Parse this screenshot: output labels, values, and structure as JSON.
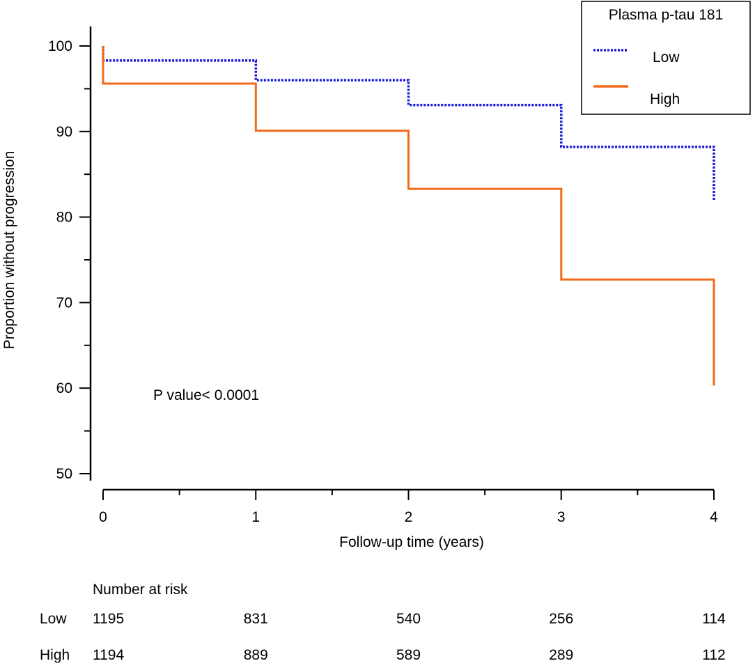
{
  "chart_data": {
    "type": "line",
    "subtype": "kaplan-meier step",
    "xlabel": "Follow-up time (years)",
    "ylabel": "Proportion without progression",
    "xlim": [
      0,
      4
    ],
    "ylim": [
      50,
      100
    ],
    "x_ticks": [
      0,
      1,
      2,
      3,
      4
    ],
    "y_ticks": [
      50,
      60,
      70,
      80,
      90,
      100
    ],
    "annotation": "P value< 0.0001",
    "legend": {
      "title": "Plasma p-tau 181",
      "position": "top-right",
      "entries": [
        "Low",
        "High"
      ]
    },
    "series": [
      {
        "name": "Low",
        "color": "#1a1adb",
        "dash": "dotted",
        "steps": [
          [
            0,
            100
          ],
          [
            0,
            98.3
          ],
          [
            1,
            98.3
          ],
          [
            1,
            96.0
          ],
          [
            2,
            96.0
          ],
          [
            2,
            93.1
          ],
          [
            3,
            93.1
          ],
          [
            3,
            88.2
          ],
          [
            4,
            88.2
          ],
          [
            4,
            82.0
          ]
        ]
      },
      {
        "name": "High",
        "color": "#f26a1b",
        "dash": "solid",
        "steps": [
          [
            0,
            100
          ],
          [
            0,
            95.6
          ],
          [
            1,
            95.6
          ],
          [
            1,
            90.1
          ],
          [
            2,
            90.1
          ],
          [
            2,
            83.3
          ],
          [
            3,
            83.3
          ],
          [
            3,
            72.7
          ],
          [
            4,
            72.7
          ],
          [
            4,
            60.3
          ]
        ]
      }
    ],
    "risk_table": {
      "title": "Number at risk",
      "rows": [
        {
          "label": "Low",
          "values": [
            1195,
            831,
            540,
            256,
            114
          ]
        },
        {
          "label": "High",
          "values": [
            1194,
            889,
            589,
            289,
            112
          ]
        }
      ]
    }
  }
}
